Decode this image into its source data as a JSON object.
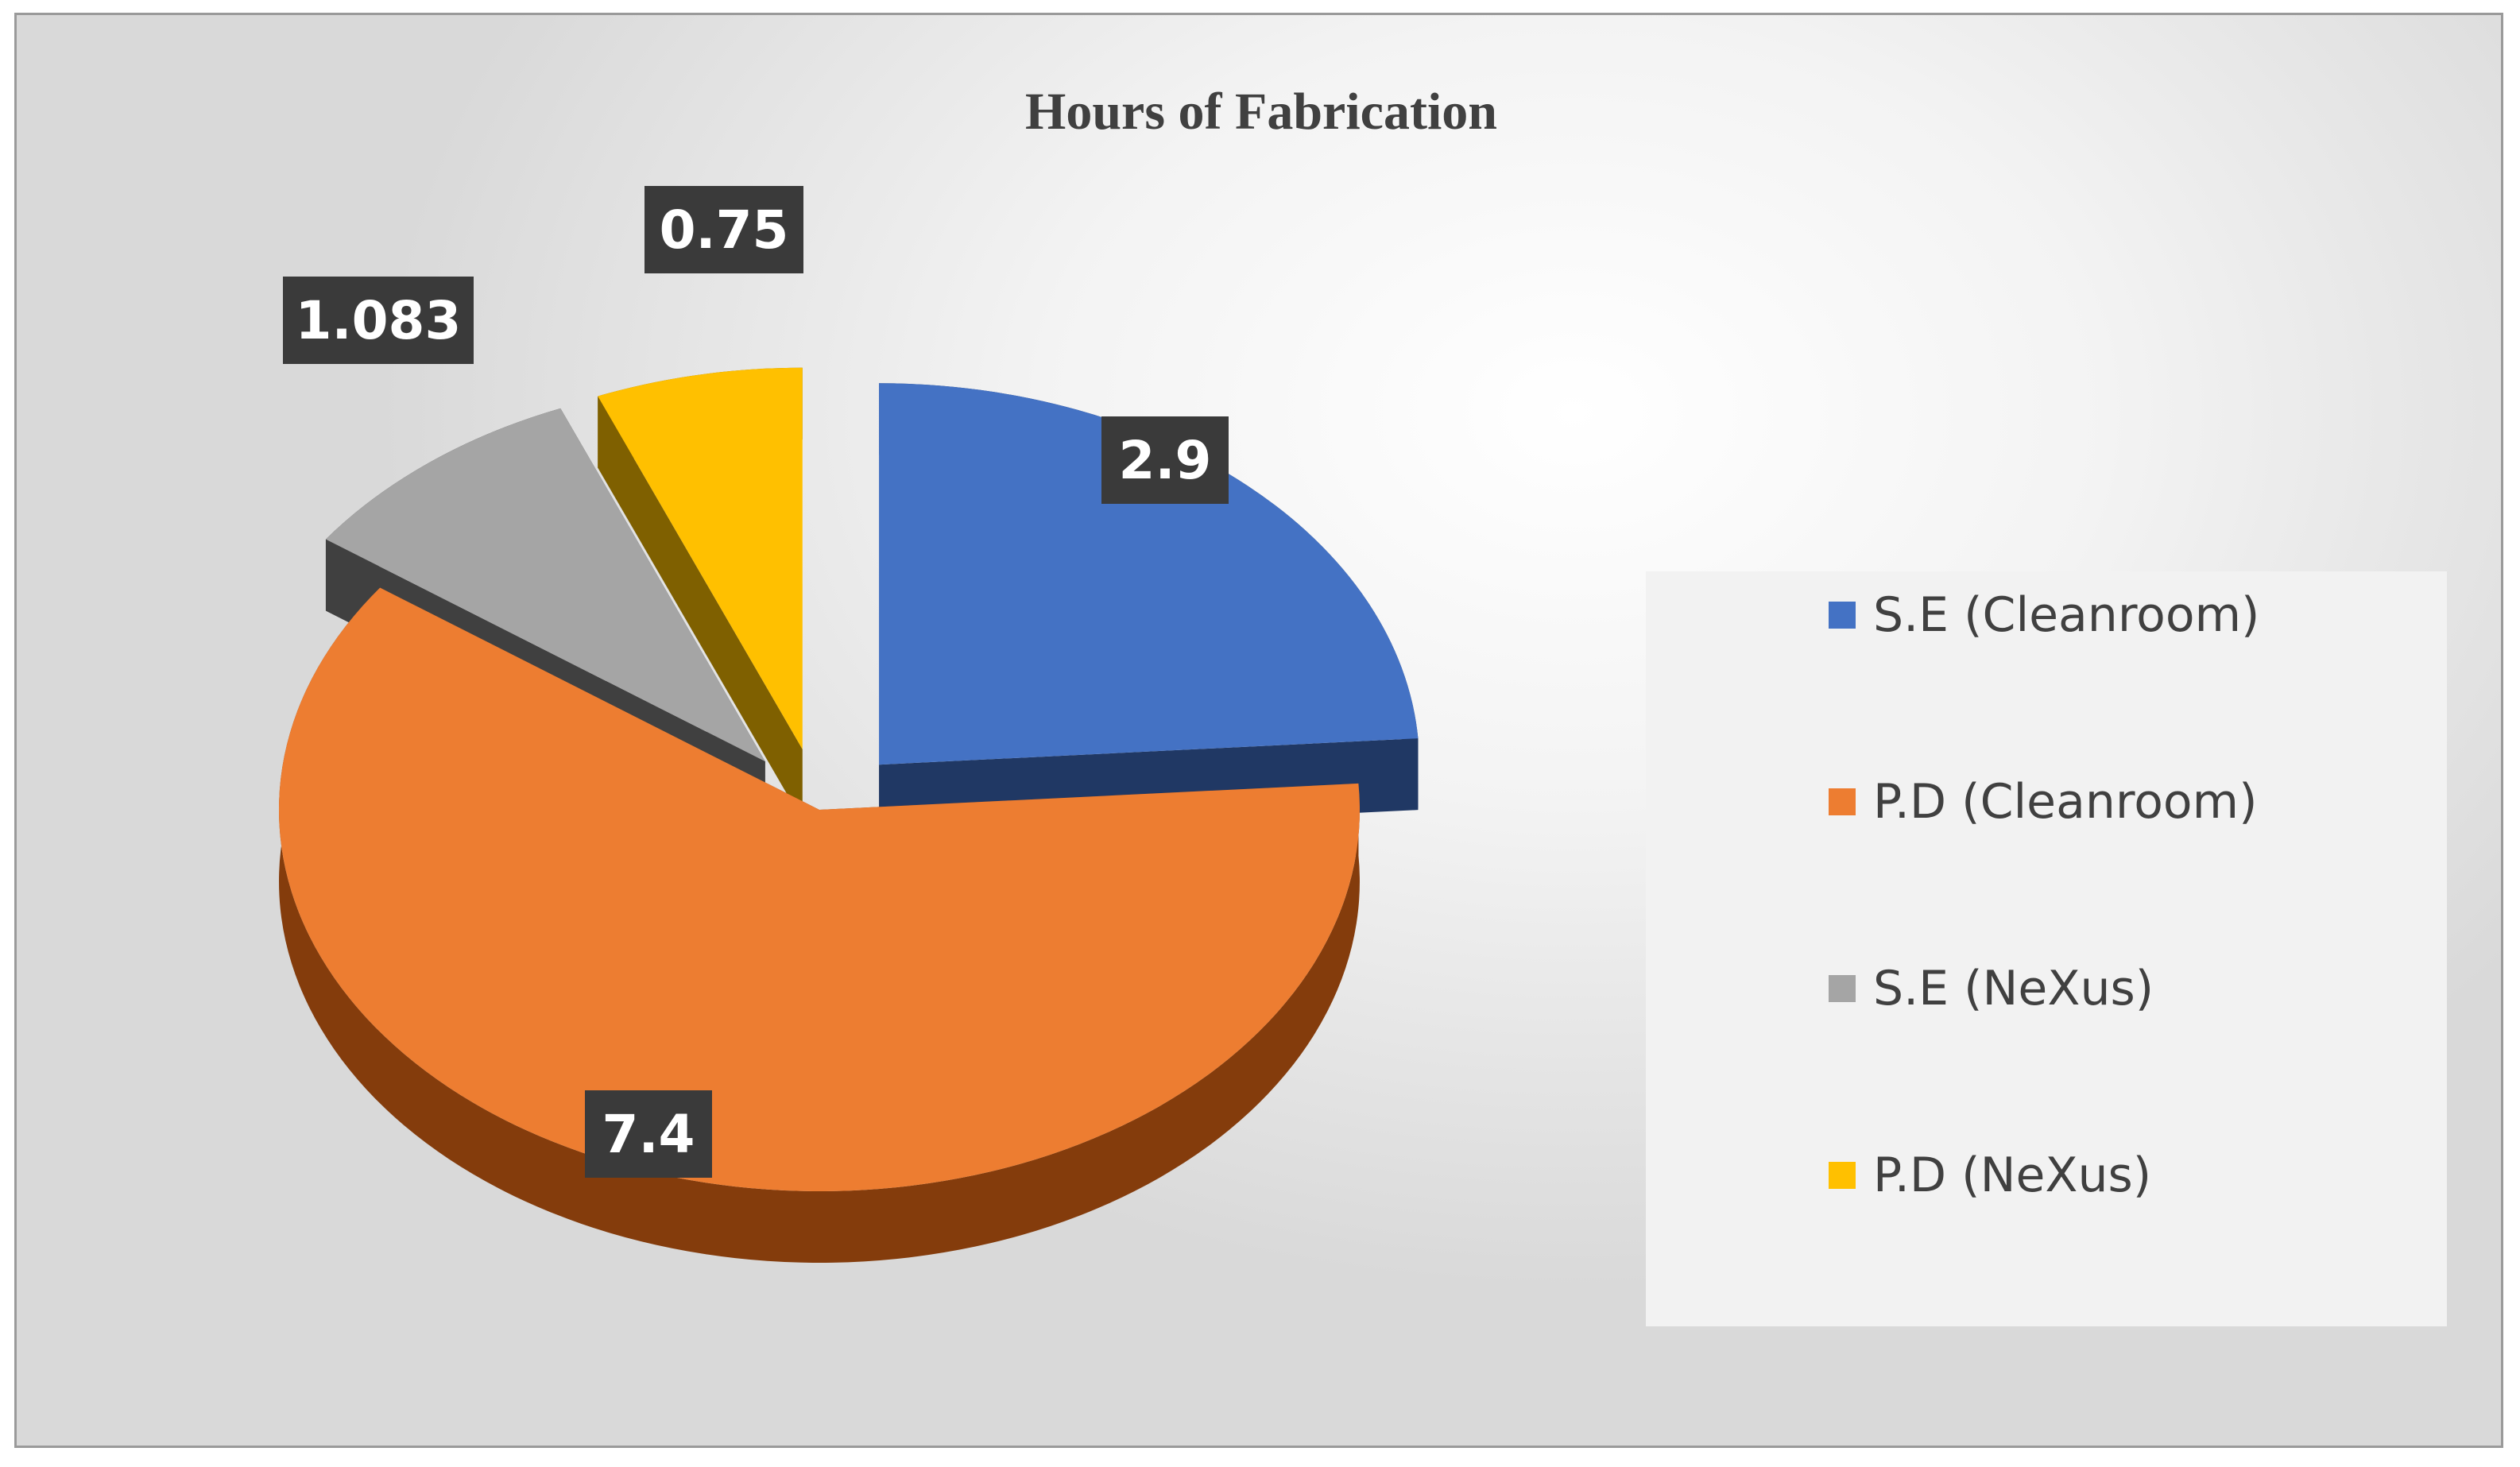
{
  "chart_data": {
    "type": "pie",
    "title": "Hours of Fabrication",
    "categories": [
      "S.E (Cleanroom)",
      "P.D (Cleanroom)",
      "S.E (NeXus)",
      "P.D (NeXus)"
    ],
    "values": [
      2.9,
      7.4,
      1.083,
      0.75
    ],
    "data_labels": [
      "2.9",
      "7.4",
      "1.083",
      "0.75"
    ],
    "colors": [
      "#4472C4",
      "#ED7D31",
      "#A5A5A5",
      "#FFC000"
    ],
    "side_colors": [
      "#203864",
      "#843C0C",
      "#404040",
      "#7F6000"
    ],
    "exploded": true,
    "three_d": true,
    "legend": "right"
  }
}
